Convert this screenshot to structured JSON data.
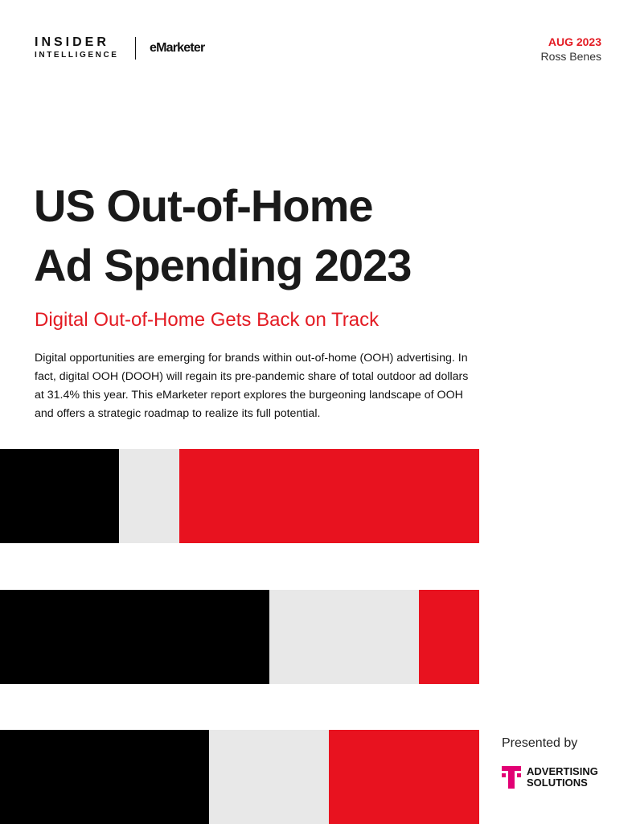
{
  "header": {
    "brand_line1": "INSIDER",
    "brand_line2": "INTELLIGENCE",
    "partner": "eMarketer",
    "date": "AUG 2023",
    "author": "Ross Benes"
  },
  "title": {
    "line1": "US Out-of-Home",
    "line2": "Ad Spending 2023"
  },
  "subtitle": "Digital Out-of-Home Gets Back on Track",
  "body": "Digital opportunities are emerging for brands within out-of-home (OOH) advertising. In fact, digital OOH (DOOH) will regain its pre-pandemic share of total outdoor ad dollars at 31.4% this year. This eMarketer report explores the burgeoning landscape of OOH and offers a strategic roadmap to realize its full potential.",
  "sponsor": {
    "label": "Presented by",
    "line1": "ADVERTISING",
    "line2": "SOLUTIONS"
  }
}
